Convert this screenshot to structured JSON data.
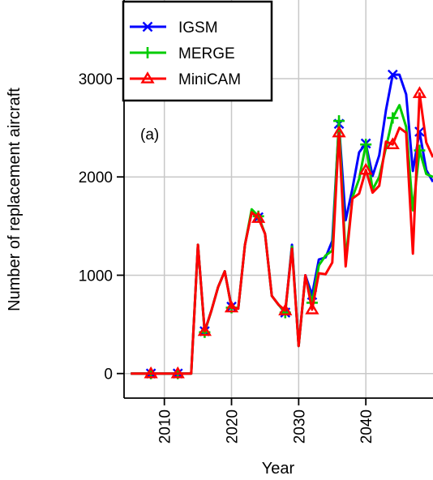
{
  "chart_data": {
    "type": "line",
    "title": "",
    "panel_label": "(a)",
    "xlabel": "Year",
    "ylabel": "Number of replacement aircraft",
    "xlim": [
      2004,
      2050
    ],
    "ylim": [
      -250,
      3800
    ],
    "xticks": [
      2010,
      2020,
      2030,
      2040
    ],
    "yticks": [
      0,
      1000,
      2000,
      3000
    ],
    "grid": true,
    "legend_position": "top-left",
    "series": [
      {
        "name": "IGSM",
        "color": "#0000ff",
        "marker": "x",
        "marker_x": [
          2008,
          2012,
          2016,
          2020,
          2024,
          2028,
          2032,
          2036,
          2040,
          2044,
          2048
        ],
        "x": [
          2005,
          2006,
          2007,
          2008,
          2009,
          2010,
          2011,
          2012,
          2013,
          2014,
          2015,
          2016,
          2017,
          2018,
          2019,
          2020,
          2021,
          2022,
          2023,
          2024,
          2025,
          2026,
          2027,
          2028,
          2029,
          2030,
          2031,
          2032,
          2033,
          2034,
          2035,
          2036,
          2037,
          2038,
          2039,
          2040,
          2041,
          2042,
          2043,
          2044,
          2045,
          2046,
          2047,
          2048,
          2049,
          2050
        ],
        "values": [
          0,
          0,
          0,
          0,
          0,
          0,
          0,
          0,
          0,
          0,
          1310,
          430,
          640,
          880,
          1040,
          680,
          660,
          1310,
          1650,
          1590,
          1420,
          790,
          700,
          620,
          1310,
          280,
          1000,
          800,
          1160,
          1180,
          1350,
          2540,
          1560,
          1880,
          2250,
          2340,
          2010,
          2220,
          2680,
          3040,
          3040,
          2840,
          2060,
          2460,
          2070,
          1950
        ]
      },
      {
        "name": "MERGE",
        "color": "#00cc00",
        "marker": "+",
        "marker_x": [
          2008,
          2012,
          2016,
          2020,
          2024,
          2028,
          2032,
          2036,
          2040,
          2044,
          2048
        ],
        "x": [
          2005,
          2006,
          2007,
          2008,
          2009,
          2010,
          2011,
          2012,
          2013,
          2014,
          2015,
          2016,
          2017,
          2018,
          2019,
          2020,
          2021,
          2022,
          2023,
          2024,
          2025,
          2026,
          2027,
          2028,
          2029,
          2030,
          2031,
          2032,
          2033,
          2034,
          2035,
          2036,
          2037,
          2038,
          2039,
          2040,
          2041,
          2042,
          2043,
          2044,
          2045,
          2046,
          2047,
          2048,
          2049,
          2050
        ],
        "values": [
          0,
          0,
          0,
          0,
          0,
          0,
          0,
          0,
          0,
          0,
          1310,
          420,
          640,
          880,
          1040,
          670,
          660,
          1310,
          1670,
          1600,
          1420,
          790,
          700,
          620,
          1290,
          280,
          990,
          720,
          1100,
          1200,
          1250,
          2570,
          1160,
          1790,
          1980,
          2330,
          1870,
          2000,
          2300,
          2600,
          2730,
          2510,
          1660,
          2270,
          2030,
          2000
        ]
      },
      {
        "name": "MiniCAM",
        "color": "#ff0000",
        "marker": "triangle",
        "marker_x": [
          2008,
          2012,
          2016,
          2020,
          2024,
          2028,
          2032,
          2036,
          2040,
          2044,
          2048
        ],
        "x": [
          2005,
          2006,
          2007,
          2008,
          2009,
          2010,
          2011,
          2012,
          2013,
          2014,
          2015,
          2016,
          2017,
          2018,
          2019,
          2020,
          2021,
          2022,
          2023,
          2024,
          2025,
          2026,
          2027,
          2028,
          2029,
          2030,
          2031,
          2032,
          2033,
          2034,
          2035,
          2036,
          2037,
          2038,
          2039,
          2040,
          2041,
          2042,
          2043,
          2044,
          2045,
          2046,
          2047,
          2048,
          2049,
          2050
        ],
        "values": [
          0,
          0,
          0,
          0,
          0,
          0,
          0,
          0,
          0,
          0,
          1310,
          430,
          640,
          880,
          1040,
          670,
          660,
          1310,
          1640,
          1580,
          1420,
          790,
          700,
          640,
          1270,
          280,
          1000,
          650,
          1020,
          1010,
          1130,
          2450,
          1090,
          1780,
          1830,
          2070,
          1840,
          1910,
          2360,
          2330,
          2500,
          2450,
          1220,
          2850,
          2350,
          2200
        ]
      }
    ]
  }
}
